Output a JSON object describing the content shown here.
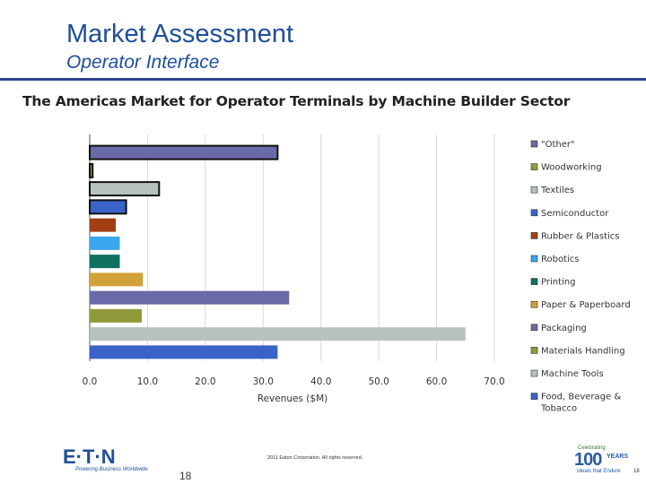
{
  "slide": {
    "title": "Market Assessment",
    "subtitle": "Operator Interface"
  },
  "footer": {
    "logo_text": "E·T·N",
    "tagline": "Powering Business Worldwide",
    "page_number": "18",
    "copyright": "2011 Eaton Corporation. All rights reserved.",
    "badge_celebrating": "Celebrating",
    "badge_number": "100",
    "badge_years": "YEARS",
    "badge_tagline": "Ideals that Endure",
    "corner_number": "18",
    "brand_color": "#1f4e9a"
  },
  "chart_data": {
    "type": "bar",
    "orientation": "horizontal",
    "title": "The Americas Market for Operator Terminals by Machine Builder Sector",
    "xlabel": "Revenues ($M)",
    "ylabel": "",
    "xlim": [
      0,
      70
    ],
    "x_ticks": [
      "0.0",
      "10.0",
      "20.0",
      "30.0",
      "40.0",
      "50.0",
      "60.0",
      "70.0"
    ],
    "grid": true,
    "legend_position": "right",
    "categories": [
      "\"Other\"",
      "Woodworking",
      "Textiles",
      "Semiconductor",
      "Rubber & Plastics",
      "Robotics",
      "Printing",
      "Paper & Paperboard",
      "Packaging",
      "Materials Handling",
      "Machine Tools",
      "Food, Beverage & Tobacco"
    ],
    "values": [
      32.5,
      0.5,
      12.0,
      6.3,
      4.5,
      5.2,
      5.2,
      9.2,
      34.5,
      9.0,
      65.0,
      32.5
    ],
    "colors": [
      "#6a6aa8",
      "#8f9a3a",
      "#b7c2bd",
      "#3a62c9",
      "#a23f12",
      "#3aa6f0",
      "#0f7060",
      "#d2a23a",
      "#6a6aa8",
      "#8f9a3a",
      "#b7c2bd",
      "#3a62c9"
    ],
    "outlined": [
      true,
      true,
      true,
      true,
      false,
      false,
      false,
      false,
      false,
      false,
      false,
      false
    ]
  }
}
